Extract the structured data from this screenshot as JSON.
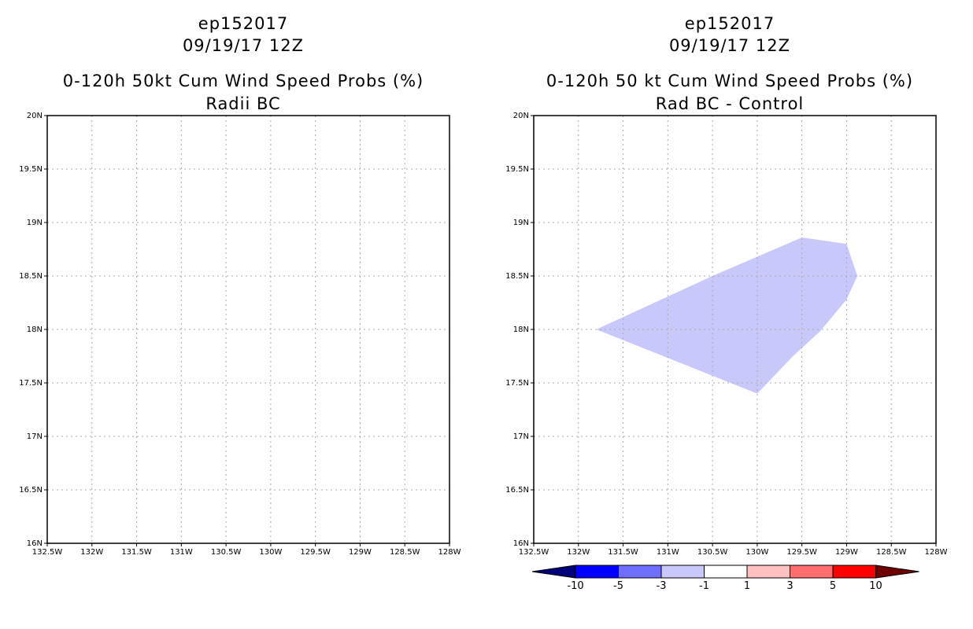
{
  "left_panel": {
    "storm_id": "ep152017",
    "datetime": "09/19/17 12Z",
    "title": "0-120h 50kt Cum Wind Speed Probs (%)",
    "subtitle": "Radii BC"
  },
  "right_panel": {
    "storm_id": "ep152017",
    "datetime": "09/19/17 12Z",
    "title": "0-120h 50 kt Cum Wind Speed Probs (%)",
    "subtitle": "Rad BC - Control"
  },
  "axes": {
    "lon_range": [
      -132.5,
      -128
    ],
    "lat_range": [
      16,
      20
    ],
    "x_ticks": [
      "132.5W",
      "132W",
      "131.5W",
      "131W",
      "130.5W",
      "130W",
      "129.5W",
      "129W",
      "128.5W",
      "128W"
    ],
    "y_ticks": [
      "16N",
      "16.5N",
      "17N",
      "17.5N",
      "18N",
      "18.5N",
      "19N",
      "19.5N",
      "20N"
    ]
  },
  "difference_region": {
    "fill_color": "#c8c8fa",
    "category": "-3 to -1",
    "polygon_lonlat": [
      [
        -131.8,
        18.0
      ],
      [
        -130.5,
        18.5
      ],
      [
        -130.0,
        18.68
      ],
      [
        -129.5,
        18.86
      ],
      [
        -129.0,
        18.8
      ],
      [
        -128.88,
        18.5
      ],
      [
        -129.0,
        18.28
      ],
      [
        -129.3,
        17.98
      ],
      [
        -129.6,
        17.75
      ],
      [
        -130.0,
        17.4
      ],
      [
        -130.3,
        17.5
      ]
    ]
  },
  "colorbar": {
    "labels": [
      "-10",
      "-5",
      "-3",
      "-1",
      "1",
      "3",
      "5",
      "10"
    ],
    "colors": [
      "#00007a",
      "#0000ff",
      "#6e6eff",
      "#c8c8fa",
      "#ffffff",
      "#ffc0c0",
      "#ff6e6e",
      "#ff0000",
      "#700000"
    ]
  }
}
